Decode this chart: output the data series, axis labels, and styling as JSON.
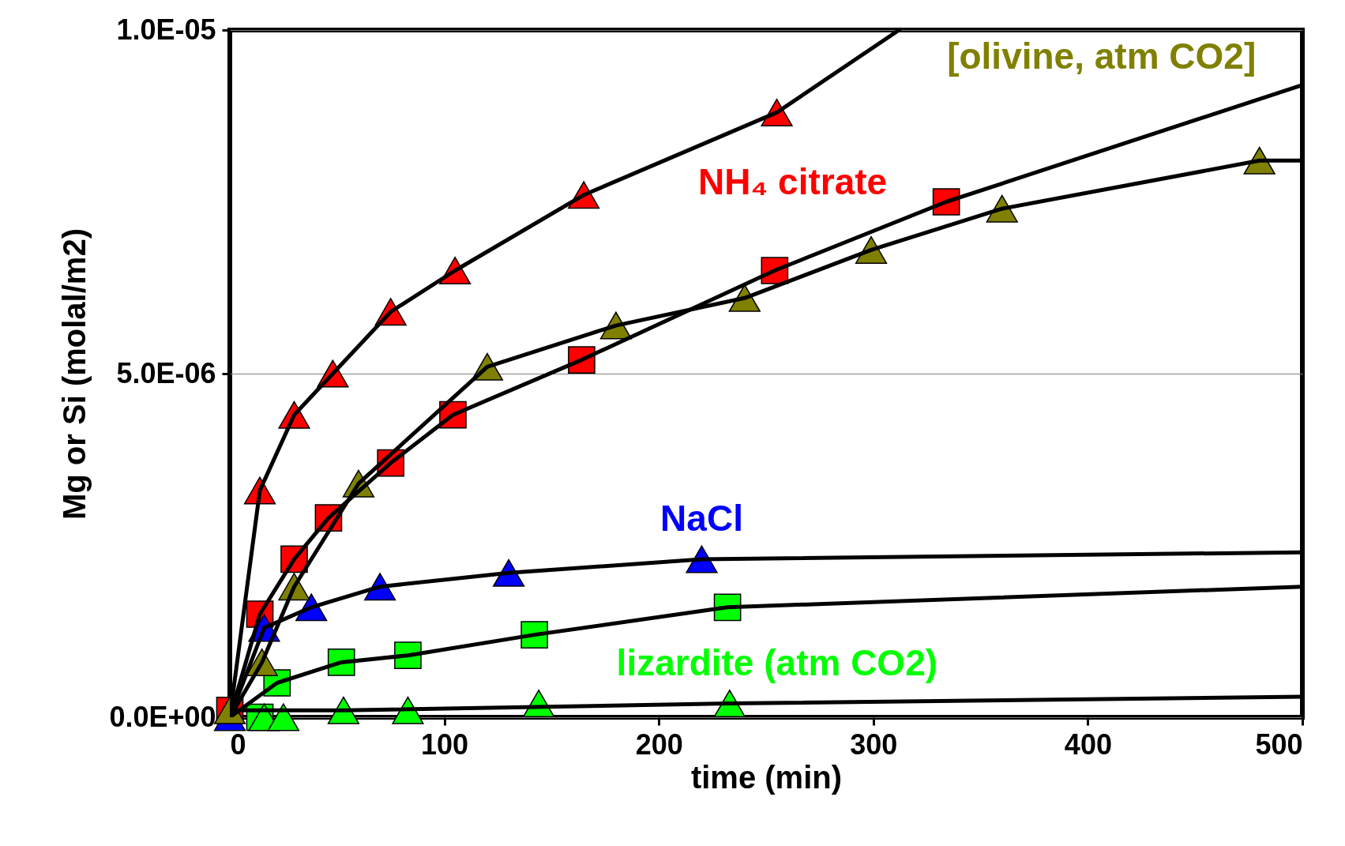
{
  "chart_data": {
    "type": "scatter",
    "xlabel": "time (min)",
    "ylabel": "Mg or Si (molal/m2)",
    "xlim": [
      0,
      500
    ],
    "xticks": [
      0,
      100,
      200,
      300,
      400,
      500
    ],
    "ylim": [
      0,
      1e-05
    ],
    "yticks": [
      {
        "value": 0,
        "label": "0.0E+00"
      },
      {
        "value": 5e-06,
        "label": "5.0E-06"
      },
      {
        "value": 1e-05,
        "label": "1.0E-05"
      }
    ],
    "grid": "y",
    "legend": false,
    "series": [
      {
        "type": "line",
        "line_style": "solid",
        "color": "#000000",
        "x": [
          0,
          14,
          30,
          48,
          75,
          105,
          165,
          255,
          312
        ],
        "values": [
          0,
          3.3e-06,
          4.4e-06,
          5e-06,
          5.9e-06,
          6.5e-06,
          7.6e-06,
          8.8e-06,
          1e-05
        ]
      },
      {
        "type": "line",
        "line_style": "solid",
        "color": "#000000",
        "x": [
          0,
          14,
          30,
          46,
          75,
          104,
          164,
          254,
          334,
          500
        ],
        "values": [
          0,
          1.5e-06,
          2.3e-06,
          2.9e-06,
          3.7e-06,
          4.4e-06,
          5.2e-06,
          6.5e-06,
          7.5e-06,
          9.2e-06
        ]
      },
      {
        "type": "line",
        "line_style": "solid",
        "color": "#000000",
        "x": [
          0,
          15,
          30,
          60,
          120,
          180,
          240,
          299,
          360,
          480,
          500
        ],
        "values": [
          0,
          8e-07,
          1.9e-06,
          3.4e-06,
          5.1e-06,
          5.7e-06,
          6.1e-06,
          6.8e-06,
          7.4e-06,
          8.1e-06,
          8.1e-06
        ]
      },
      {
        "type": "line",
        "line_style": "solid",
        "color": "#000000",
        "x": [
          0,
          16,
          38,
          70,
          130,
          220,
          500
        ],
        "values": [
          0,
          1.3e-06,
          1.6e-06,
          1.9e-06,
          2.1e-06,
          2.3e-06,
          2.4e-06
        ]
      },
      {
        "type": "line",
        "line_style": "solid",
        "color": "#000000",
        "x": [
          0,
          22,
          52,
          83,
          142,
          232,
          500
        ],
        "values": [
          0,
          5e-07,
          8e-07,
          9e-07,
          1.2e-06,
          1.6e-06,
          1.9e-06
        ]
      },
      {
        "type": "line",
        "line_style": "solid",
        "color": "#000000",
        "x": [
          0,
          53,
          233,
          500
        ],
        "values": [
          1e-07,
          1e-07,
          2e-07,
          3e-07
        ]
      },
      {
        "marker": "square",
        "color": "#ff0000",
        "x": [
          0,
          14,
          30,
          46,
          75,
          104,
          164,
          254,
          334
        ],
        "values": [
          1e-07,
          1.5e-06,
          2.3e-06,
          2.9e-06,
          3.7e-06,
          4.4e-06,
          5.2e-06,
          6.5e-06,
          7.5e-06
        ]
      },
      {
        "name": "NH₄ citrate",
        "marker": "triangle",
        "color": "#ff0000",
        "x": [
          14,
          30,
          48,
          75,
          105,
          165,
          255
        ],
        "values": [
          3.3e-06,
          4.4e-06,
          5e-06,
          5.9e-06,
          6.5e-06,
          7.6e-06,
          8.8e-06
        ]
      },
      {
        "name": "NaCl",
        "marker": "triangle",
        "color": "#0000ff",
        "x": [
          0,
          16,
          38,
          70,
          130,
          220
        ],
        "values": [
          0,
          1.3e-06,
          1.6e-06,
          1.9e-06,
          2.1e-06,
          2.3e-06
        ]
      },
      {
        "marker": "square",
        "color": "#00ff00",
        "x": [
          14,
          22,
          52,
          83,
          142,
          232
        ],
        "values": [
          0,
          5e-07,
          8e-07,
          9e-07,
          1.2e-06,
          1.6e-06
        ]
      },
      {
        "name": "lizardite (atm CO2)",
        "marker": "triangle",
        "color": "#00ff00",
        "x": [
          16,
          25,
          53,
          83,
          144,
          233
        ],
        "values": [
          0,
          0,
          1e-07,
          1e-07,
          2e-07,
          2e-07
        ]
      },
      {
        "name": "[olivine, atm CO2]",
        "marker": "triangle",
        "color": "#808000",
        "x": [
          0,
          15,
          30,
          60,
          120,
          180,
          240,
          299,
          360,
          480
        ],
        "values": [
          1e-07,
          8e-07,
          1.9e-06,
          3.4e-06,
          5.1e-06,
          5.7e-06,
          6.1e-06,
          6.8e-06,
          7.4e-06,
          8.1e-06
        ]
      }
    ]
  }
}
